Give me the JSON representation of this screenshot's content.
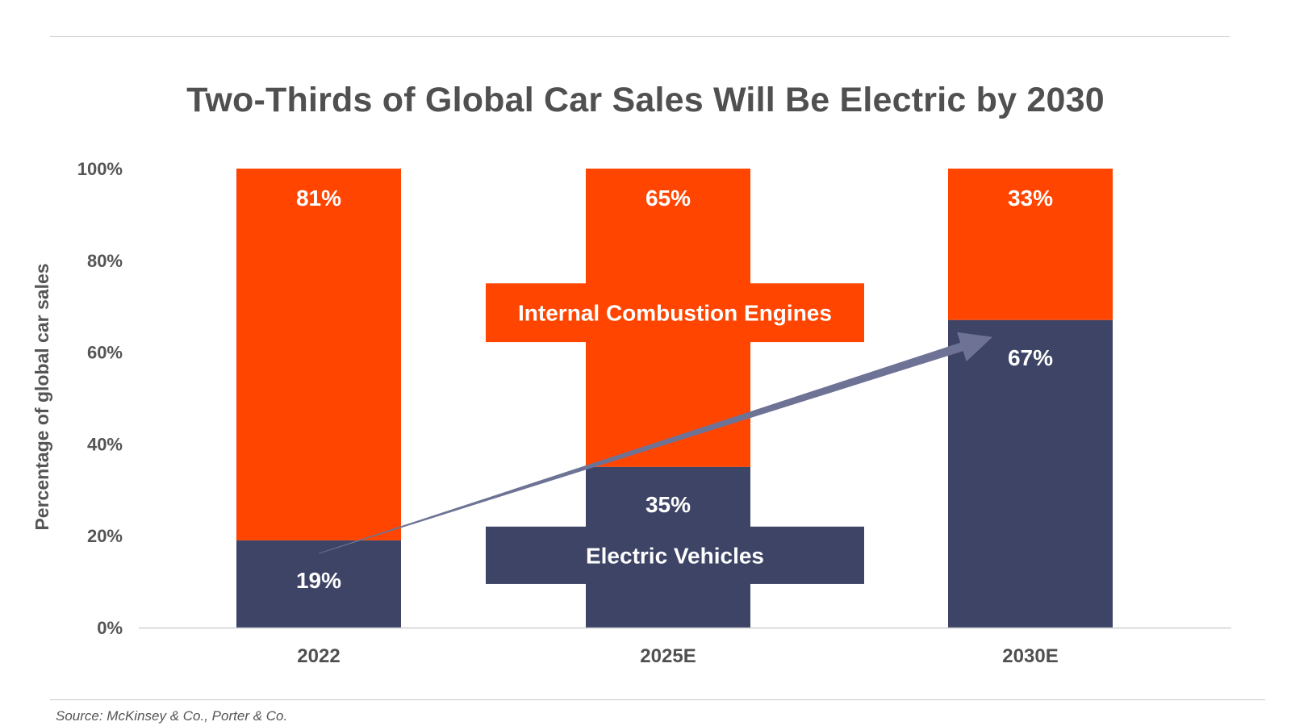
{
  "title": "Two-Thirds of Global Car Sales Will Be Electric by 2030",
  "source": "Source: McKinsey & Co., Porter & Co.",
  "colors": {
    "ice": "#FF4500",
    "ev": "#3D4465",
    "arrow": "#6E7396",
    "axis_text": "#555555"
  },
  "chart_data": {
    "type": "bar",
    "stacked": true,
    "categories": [
      "2022",
      "2025E",
      "2030E"
    ],
    "series": [
      {
        "name": "Electric Vehicles",
        "values": [
          19,
          35,
          67
        ],
        "labels": [
          "19%",
          "35%",
          "67%"
        ]
      },
      {
        "name": "Internal Combustion Engines",
        "values": [
          81,
          65,
          33
        ],
        "labels": [
          "81%",
          "65%",
          "33%"
        ]
      }
    ],
    "ylabel": "Percentage of global car sales",
    "yticks": [
      "0%",
      "20%",
      "40%",
      "60%",
      "80%",
      "100%"
    ],
    "ylim": [
      0,
      100
    ],
    "grid": false,
    "legend": "center, as labels overlaid on the middle bar",
    "annotation": "arrow rising from 2022 EV share to 2030E EV share"
  }
}
